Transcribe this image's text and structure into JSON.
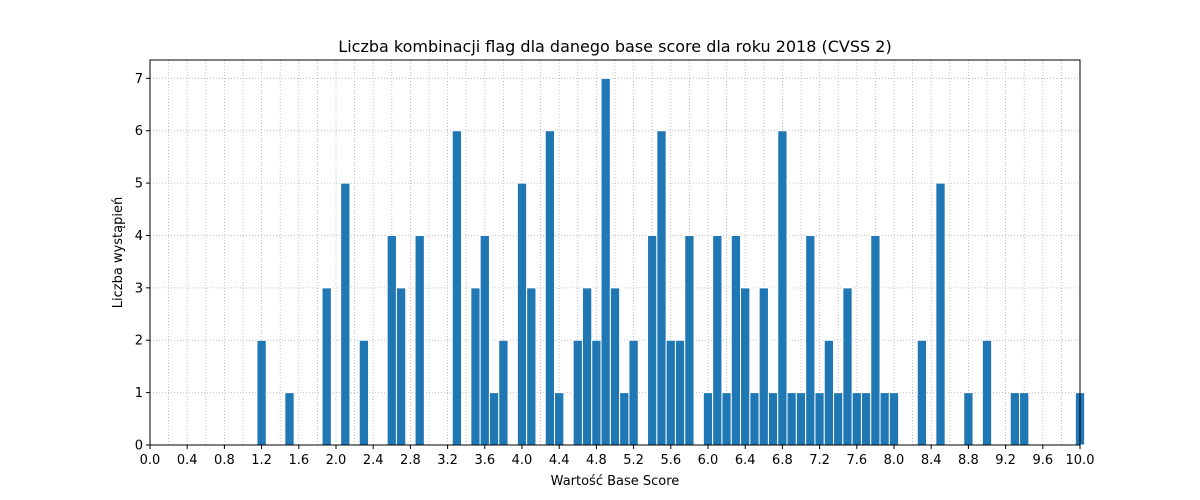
{
  "chart_data": {
    "type": "bar",
    "title": "Liczba kombinacji flag dla danego base score dla roku 2018 (CVSS 2)",
    "xlabel": "Wartość Base Score",
    "ylabel": "Liczba wystąpień",
    "xlim": [
      0.0,
      10.0
    ],
    "ylim": [
      0,
      7.35
    ],
    "bar_width": 0.1,
    "bar_color": "#1f77b4",
    "grid": true,
    "x_ticks": [
      "0.0",
      "0.4",
      "0.8",
      "1.2",
      "1.6",
      "2.0",
      "2.4",
      "2.8",
      "3.2",
      "3.6",
      "4.0",
      "4.4",
      "4.8",
      "5.2",
      "5.6",
      "6.0",
      "6.4",
      "6.8",
      "7.2",
      "7.6",
      "8.0",
      "8.4",
      "8.8",
      "9.2",
      "9.6",
      "10.0"
    ],
    "y_ticks": [
      "0",
      "1",
      "2",
      "3",
      "4",
      "5",
      "6",
      "7"
    ],
    "x": [
      1.2,
      1.5,
      1.9,
      2.1,
      2.3,
      2.6,
      2.7,
      2.9,
      3.3,
      3.5,
      3.6,
      3.7,
      3.8,
      4.0,
      4.1,
      4.3,
      4.4,
      4.6,
      4.7,
      4.8,
      4.9,
      5.0,
      5.1,
      5.2,
      5.4,
      5.5,
      5.6,
      5.7,
      5.8,
      6.0,
      6.1,
      6.2,
      6.3,
      6.4,
      6.5,
      6.6,
      6.7,
      6.8,
      6.9,
      7.0,
      7.1,
      7.2,
      7.3,
      7.4,
      7.5,
      7.6,
      7.7,
      7.8,
      7.9,
      8.0,
      8.3,
      8.5,
      8.8,
      9.0,
      9.3,
      9.4,
      10.0
    ],
    "values": [
      2,
      1,
      3,
      5,
      2,
      4,
      3,
      4,
      6,
      3,
      4,
      1,
      2,
      5,
      3,
      6,
      1,
      2,
      3,
      2,
      7,
      3,
      1,
      2,
      4,
      6,
      2,
      2,
      4,
      1,
      4,
      1,
      4,
      3,
      1,
      3,
      1,
      6,
      1,
      1,
      4,
      1,
      2,
      1,
      3,
      1,
      1,
      4,
      1,
      1,
      2,
      5,
      1,
      2,
      1,
      1,
      1
    ]
  }
}
